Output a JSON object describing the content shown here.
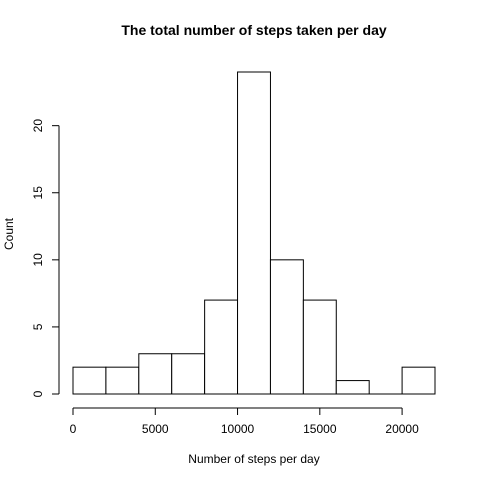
{
  "chart_data": {
    "type": "bar",
    "title": "The total number of steps taken per day",
    "xlabel": "Number of steps per day",
    "ylabel": "Count",
    "bins": [
      {
        "start": 0,
        "end": 2000,
        "count": 2
      },
      {
        "start": 2000,
        "end": 4000,
        "count": 2
      },
      {
        "start": 4000,
        "end": 6000,
        "count": 3
      },
      {
        "start": 6000,
        "end": 8000,
        "count": 3
      },
      {
        "start": 8000,
        "end": 10000,
        "count": 7
      },
      {
        "start": 10000,
        "end": 12000,
        "count": 24
      },
      {
        "start": 12000,
        "end": 14000,
        "count": 10
      },
      {
        "start": 14000,
        "end": 16000,
        "count": 7
      },
      {
        "start": 16000,
        "end": 18000,
        "count": 1
      },
      {
        "start": 18000,
        "end": 20000,
        "count": 0
      },
      {
        "start": 20000,
        "end": 22000,
        "count": 2
      }
    ],
    "xlim": [
      0,
      22000
    ],
    "ylim": [
      0,
      24
    ],
    "x_ticks": [
      0,
      5000,
      10000,
      15000,
      20000
    ],
    "x_tick_labels": [
      "0",
      "5000",
      "10000",
      "15000",
      "20000"
    ],
    "y_ticks": [
      0,
      5,
      10,
      15,
      20
    ],
    "y_tick_labels": [
      "0",
      "5",
      "10",
      "15",
      "20"
    ],
    "grid": false,
    "bar_fill": "#ffffff",
    "bar_stroke": "#000000"
  }
}
